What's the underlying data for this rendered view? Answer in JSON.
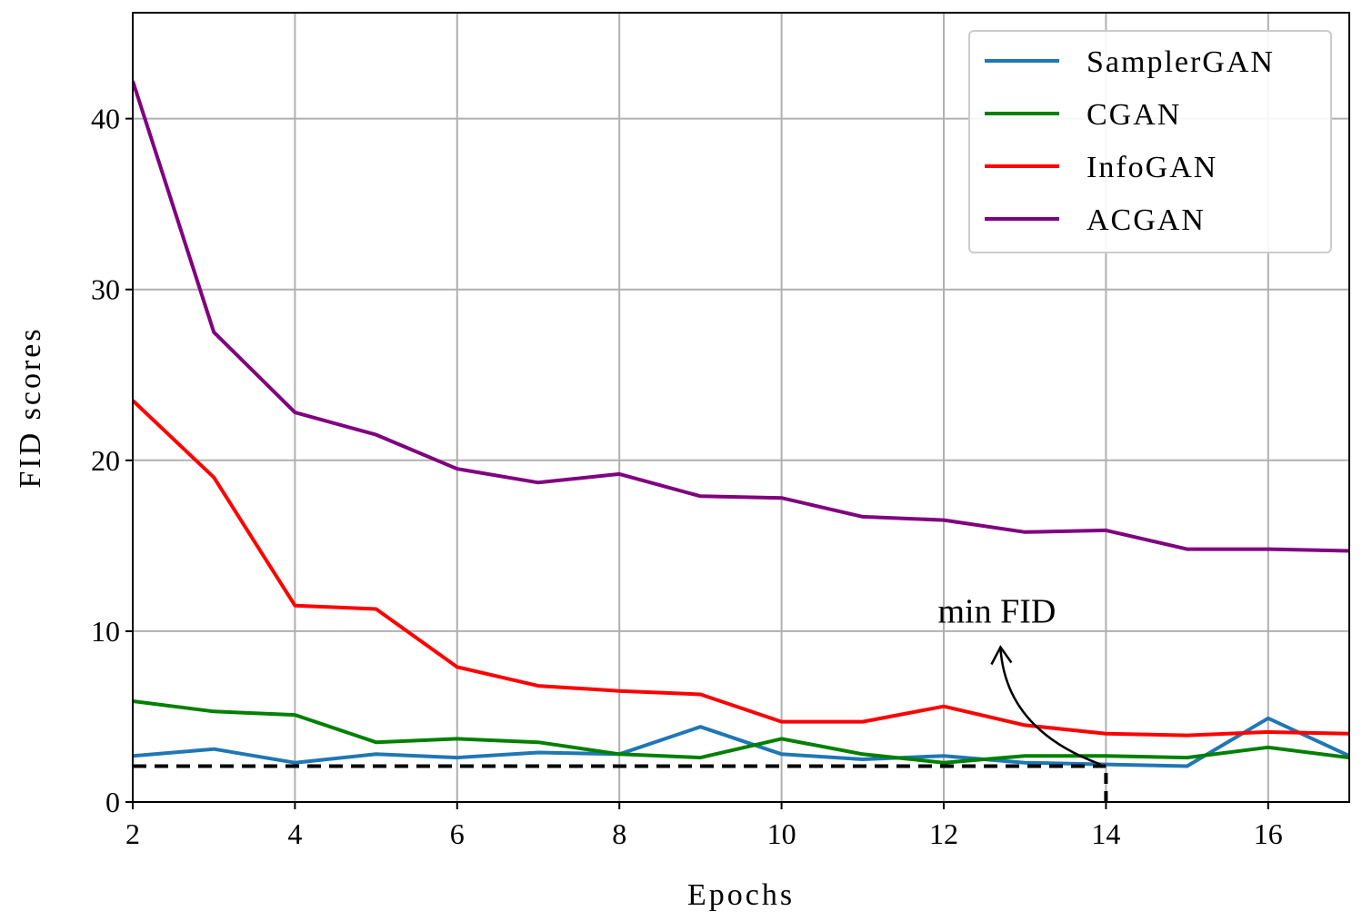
{
  "chart_data": {
    "type": "line",
    "title": "",
    "xlabel": "Epochs",
    "ylabel": "FID scores",
    "xlim": [
      2,
      17
    ],
    "ylim": [
      0,
      46.2
    ],
    "xticks": [
      2,
      4,
      6,
      8,
      10,
      12,
      14,
      16
    ],
    "yticks": [
      0,
      10,
      20,
      30,
      40
    ],
    "grid": true,
    "legend_position": "top-right",
    "x": [
      2,
      3,
      4,
      5,
      6,
      7,
      8,
      9,
      10,
      11,
      12,
      13,
      14,
      15,
      16,
      17
    ],
    "series": [
      {
        "name": "SamplerGAN",
        "color": "#1f77b4",
        "values": [
          2.7,
          3.1,
          2.3,
          2.8,
          2.6,
          2.9,
          2.8,
          4.4,
          2.8,
          2.5,
          2.7,
          2.3,
          2.2,
          2.1,
          4.9,
          2.7
        ]
      },
      {
        "name": "CGAN",
        "color": "#008000",
        "values": [
          5.9,
          5.3,
          5.1,
          3.5,
          3.7,
          3.5,
          2.8,
          2.6,
          3.7,
          2.8,
          2.3,
          2.7,
          2.7,
          2.6,
          3.2,
          2.6
        ]
      },
      {
        "name": "InfoGAN",
        "color": "#ff0000",
        "values": [
          23.5,
          19.0,
          11.5,
          11.3,
          7.9,
          6.8,
          6.5,
          6.3,
          4.7,
          4.7,
          5.6,
          4.5,
          4.0,
          3.9,
          4.1,
          4.0
        ]
      },
      {
        "name": "ACGAN",
        "color": "#800080",
        "values": [
          42.2,
          27.5,
          22.8,
          21.5,
          19.5,
          18.7,
          19.2,
          17.9,
          17.8,
          16.7,
          16.5,
          15.8,
          15.9,
          14.8,
          14.8,
          14.7
        ]
      }
    ],
    "reference_line": {
      "y": 2.1,
      "x_end": 14,
      "style": "dashed",
      "color": "#000000"
    },
    "annotation": {
      "text": "min FID",
      "x": 14,
      "y": 2.1
    }
  }
}
